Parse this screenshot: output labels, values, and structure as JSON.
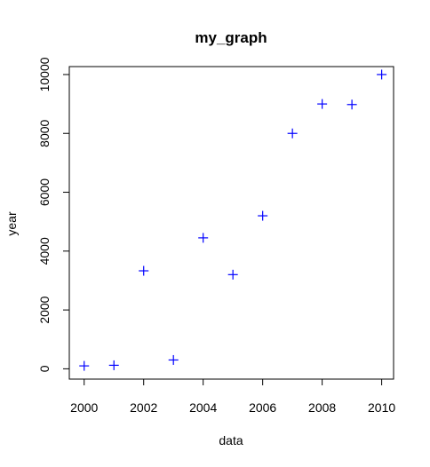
{
  "chart_data": {
    "type": "scatter",
    "title": "my_graph",
    "xlabel": "data",
    "ylabel": "year",
    "x": [
      2000,
      2001,
      2002,
      2003,
      2004,
      2005,
      2006,
      2007,
      2008,
      2009,
      2010
    ],
    "y": [
      100,
      120,
      3330,
      300,
      4450,
      3200,
      5200,
      8000,
      9000,
      8980,
      10000
    ],
    "xlim": [
      1999.5,
      2010.4
    ],
    "ylim": [
      -350,
      10270
    ],
    "x_ticks": [
      2000,
      2002,
      2004,
      2006,
      2008,
      2010
    ],
    "x_tick_labels": [
      "2000",
      "2002",
      "2004",
      "2006",
      "2008",
      "2010"
    ],
    "y_ticks": [
      0,
      2000,
      4000,
      6000,
      8000,
      10000
    ],
    "y_tick_labels": [
      "0",
      "2000",
      "4000",
      "6000",
      "8000",
      "10000"
    ],
    "marker": "plus",
    "marker_color": "#0000ff",
    "grid": false,
    "legend": "none"
  }
}
